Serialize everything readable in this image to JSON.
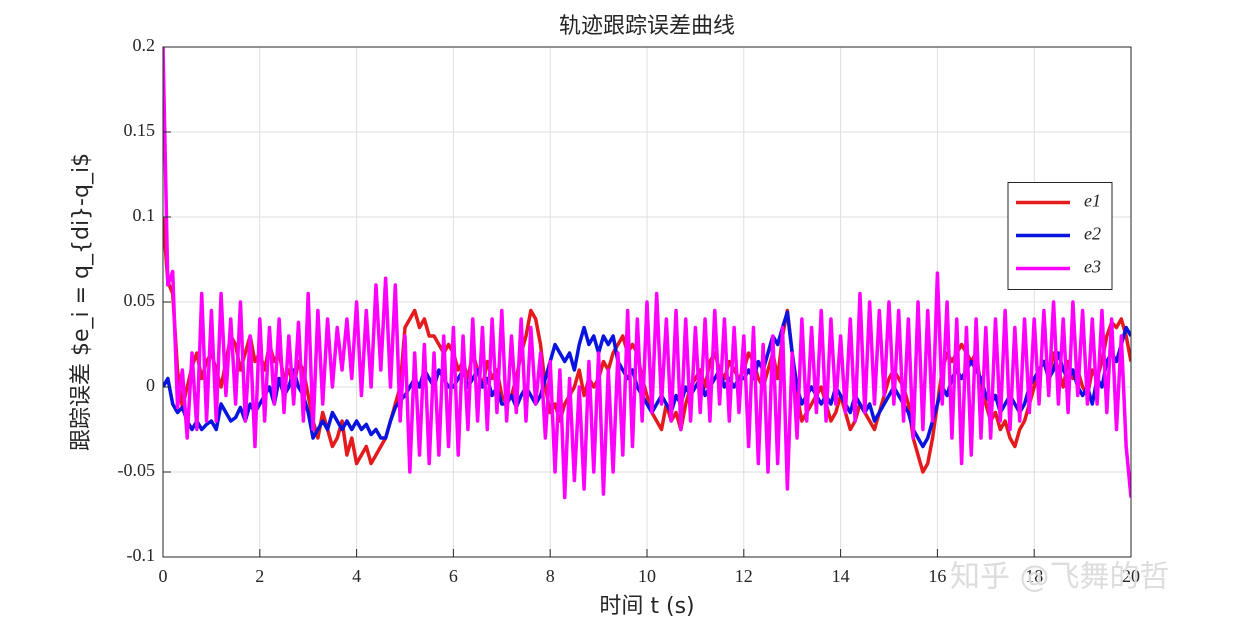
{
  "chart_data": {
    "type": "line",
    "title": "轨迹跟踪误差曲线",
    "x_label": "时间 t (s)",
    "y_label": "跟踪误差 $e_i = q_{di}-q_i$",
    "watermark": "知乎 @飞舞的哲",
    "xlim": [
      0,
      20
    ],
    "ylim": [
      -0.1,
      0.2
    ],
    "xticks": [
      0,
      2,
      4,
      6,
      8,
      10,
      12,
      14,
      16,
      18,
      20
    ],
    "yticks": [
      -0.1,
      -0.05,
      0,
      0.05,
      0.1,
      0.15,
      0.2
    ],
    "grid": true,
    "legend_location": "east",
    "x": [
      0,
      0.1,
      0.2,
      0.3,
      0.4,
      0.5,
      0.6,
      0.7,
      0.8,
      0.9,
      1,
      1.1,
      1.2,
      1.3,
      1.4,
      1.5,
      1.6,
      1.7,
      1.8,
      1.9,
      2,
      2.1,
      2.2,
      2.3,
      2.4,
      2.5,
      2.6,
      2.7,
      2.8,
      2.9,
      3,
      3.1,
      3.2,
      3.3,
      3.4,
      3.5,
      3.6,
      3.7,
      3.8,
      3.9,
      4,
      4.1,
      4.2,
      4.3,
      4.4,
      4.5,
      4.6,
      4.7,
      4.8,
      4.9,
      5,
      5.1,
      5.2,
      5.3,
      5.4,
      5.5,
      5.6,
      5.7,
      5.8,
      5.9,
      6,
      6.1,
      6.2,
      6.3,
      6.4,
      6.5,
      6.6,
      6.7,
      6.8,
      6.9,
      7,
      7.1,
      7.2,
      7.3,
      7.4,
      7.5,
      7.6,
      7.7,
      7.8,
      7.9,
      8,
      8.1,
      8.2,
      8.3,
      8.4,
      8.5,
      8.6,
      8.7,
      8.8,
      8.9,
      9,
      9.1,
      9.2,
      9.3,
      9.4,
      9.5,
      9.6,
      9.7,
      9.8,
      9.9,
      10,
      10.1,
      10.2,
      10.3,
      10.4,
      10.5,
      10.6,
      10.7,
      10.8,
      10.9,
      11,
      11.1,
      11.2,
      11.3,
      11.4,
      11.5,
      11.6,
      11.7,
      11.8,
      11.9,
      12,
      12.1,
      12.2,
      12.3,
      12.4,
      12.5,
      12.6,
      12.7,
      12.8,
      12.9,
      13,
      13.1,
      13.2,
      13.3,
      13.4,
      13.5,
      13.6,
      13.7,
      13.8,
      13.9,
      14,
      14.1,
      14.2,
      14.3,
      14.4,
      14.5,
      14.6,
      14.7,
      14.8,
      14.9,
      15,
      15.1,
      15.2,
      15.3,
      15.4,
      15.5,
      15.6,
      15.7,
      15.8,
      15.9,
      16,
      16.1,
      16.2,
      16.3,
      16.4,
      16.5,
      16.6,
      16.7,
      16.8,
      16.9,
      17,
      17.1,
      17.2,
      17.3,
      17.4,
      17.5,
      17.6,
      17.7,
      17.8,
      17.9,
      18,
      18.1,
      18.2,
      18.3,
      18.4,
      18.5,
      18.6,
      18.7,
      18.8,
      18.9,
      19,
      19.1,
      19.2,
      19.3,
      19.4,
      19.5,
      19.6,
      19.7,
      19.8,
      19.9,
      20
    ],
    "series": [
      {
        "name": "e1",
        "color": "#e41a1c",
        "values": [
          0.1,
          0.062,
          0.055,
          0.01,
          -0.012,
          0.0,
          0.012,
          0.02,
          0.005,
          0.015,
          0.02,
          0.01,
          0.0,
          0.015,
          0.03,
          0.025,
          0.01,
          0.02,
          0.03,
          0.015,
          0.02,
          0.01,
          0.025,
          0.015,
          0.02,
          0.005,
          0.01,
          0.0,
          0.015,
          0.01,
          -0.005,
          -0.02,
          -0.03,
          -0.015,
          -0.025,
          -0.035,
          -0.03,
          -0.02,
          -0.04,
          -0.03,
          -0.045,
          -0.04,
          -0.035,
          -0.045,
          -0.04,
          -0.035,
          -0.03,
          -0.02,
          -0.01,
          0.0,
          0.035,
          0.04,
          0.045,
          0.035,
          0.04,
          0.03,
          0.03,
          0.025,
          0.02,
          0.025,
          0.02,
          0.01,
          0.015,
          0.005,
          0.02,
          0.01,
          0.0,
          0.015,
          0.005,
          0.01,
          -0.005,
          -0.01,
          -0.005,
          0.005,
          0.02,
          0.03,
          0.045,
          0.04,
          0.025,
          0.0,
          -0.015,
          -0.01,
          -0.02,
          -0.01,
          -0.005,
          0.0,
          0.01,
          -0.005,
          0.005,
          0.0,
          0.005,
          0.015,
          0.01,
          0.02,
          0.025,
          0.03,
          0.02,
          0.025,
          0.02,
          0.005,
          -0.005,
          -0.015,
          -0.02,
          -0.025,
          -0.01,
          -0.02,
          -0.015,
          -0.025,
          -0.01,
          0.0,
          0.005,
          0.01,
          0.0,
          0.015,
          0.02,
          0.01,
          0.005,
          0.015,
          0.01,
          0.005,
          0.01,
          0.02,
          0.015,
          0.005,
          0.0,
          0.01,
          0.02,
          0.005,
          0.03,
          0.045,
          0.02,
          -0.005,
          -0.02,
          -0.015,
          -0.01,
          -0.005,
          0.0,
          -0.01,
          -0.02,
          -0.015,
          -0.005,
          -0.015,
          -0.025,
          -0.02,
          -0.01,
          -0.015,
          -0.02,
          -0.025,
          -0.015,
          -0.005,
          0.005,
          0.01,
          0.005,
          0.0,
          -0.01,
          -0.03,
          -0.04,
          -0.05,
          -0.045,
          -0.03,
          -0.01,
          0.01,
          0.02,
          0.015,
          0.02,
          0.025,
          0.02,
          0.015,
          0.02,
          0.0,
          -0.01,
          -0.02,
          -0.015,
          -0.025,
          -0.02,
          -0.03,
          -0.035,
          -0.025,
          -0.02,
          -0.01,
          0.0,
          0.01,
          0.015,
          0.005,
          0.02,
          0.01,
          0.0,
          0.015,
          0.005,
          0.01,
          0.0,
          -0.005,
          0.01,
          0.005,
          0.015,
          0.03,
          0.038,
          0.035,
          0.04,
          0.03,
          0.015
        ]
      },
      {
        "name": "e2",
        "color": "#0a14e0",
        "values": [
          0.0,
          0.005,
          -0.01,
          -0.015,
          -0.012,
          -0.02,
          -0.025,
          -0.02,
          -0.025,
          -0.022,
          -0.02,
          -0.025,
          -0.01,
          -0.015,
          -0.02,
          -0.018,
          -0.012,
          -0.02,
          -0.01,
          -0.015,
          -0.01,
          -0.005,
          0.0,
          -0.01,
          0.005,
          -0.005,
          0.0,
          0.01,
          0.0,
          -0.005,
          -0.015,
          -0.03,
          -0.025,
          -0.02,
          -0.025,
          -0.015,
          -0.02,
          -0.025,
          -0.02,
          -0.025,
          -0.02,
          -0.025,
          -0.022,
          -0.028,
          -0.025,
          -0.03,
          -0.03,
          -0.02,
          -0.012,
          -0.008,
          -0.005,
          0.0,
          0.005,
          0.0,
          0.01,
          0.005,
          0.0,
          0.01,
          0.005,
          0.0,
          0.0,
          0.005,
          0.01,
          0.0,
          0.005,
          0.01,
          0.0,
          0.005,
          -0.005,
          0.0,
          -0.01,
          -0.01,
          -0.005,
          -0.012,
          -0.005,
          0.0,
          -0.005,
          -0.01,
          -0.005,
          0.005,
          0.015,
          0.025,
          0.02,
          0.015,
          0.02,
          0.01,
          0.025,
          0.035,
          0.025,
          0.03,
          0.02,
          0.03,
          0.025,
          0.03,
          0.015,
          0.01,
          0.005,
          0.01,
          0.0,
          -0.005,
          -0.01,
          -0.015,
          -0.01,
          -0.005,
          -0.01,
          -0.015,
          -0.005,
          -0.01,
          0.0,
          -0.005,
          0.0,
          0.005,
          -0.005,
          0.0,
          0.005,
          0.01,
          0.0,
          0.005,
          0.0,
          0.005,
          0.005,
          0.01,
          0.005,
          0.015,
          0.01,
          0.02,
          0.03,
          0.025,
          0.035,
          0.044,
          0.02,
          0.0,
          -0.01,
          -0.005,
          0.0,
          -0.005,
          -0.01,
          -0.005,
          -0.01,
          0.0,
          -0.005,
          -0.01,
          -0.015,
          -0.005,
          -0.01,
          -0.015,
          -0.01,
          -0.02,
          -0.015,
          -0.01,
          -0.005,
          0.0,
          -0.005,
          -0.01,
          -0.015,
          -0.025,
          -0.03,
          -0.035,
          -0.03,
          -0.02,
          -0.01,
          0.0,
          -0.005,
          0.005,
          0.01,
          0.005,
          0.01,
          0.015,
          0.01,
          0.005,
          -0.005,
          -0.01,
          -0.005,
          -0.015,
          -0.01,
          -0.005,
          -0.01,
          -0.015,
          -0.01,
          0.0,
          0.005,
          0.01,
          0.015,
          0.005,
          0.01,
          0.02,
          0.01,
          0.005,
          0.01,
          0.0,
          -0.005,
          0.0,
          -0.01,
          0.005,
          0.0,
          0.015,
          0.02,
          0.015,
          0.025,
          0.035,
          0.03
        ]
      },
      {
        "name": "e3",
        "color": "#ff00ff",
        "values": [
          0.2,
          0.06,
          0.068,
          -0.012,
          0.01,
          -0.03,
          0.02,
          -0.025,
          0.055,
          -0.02,
          0.045,
          -0.02,
          0.055,
          -0.005,
          0.04,
          -0.01,
          0.05,
          -0.02,
          0.03,
          -0.035,
          0.04,
          -0.02,
          0.035,
          -0.01,
          0.04,
          -0.015,
          0.03,
          -0.01,
          0.038,
          -0.02,
          0.055,
          -0.025,
          0.045,
          -0.01,
          0.04,
          0.0,
          0.035,
          0.01,
          0.04,
          0.005,
          0.05,
          -0.005,
          0.045,
          0.0,
          0.06,
          0.01,
          0.064,
          0.0,
          0.06,
          -0.02,
          0.03,
          -0.05,
          0.02,
          -0.04,
          0.025,
          -0.045,
          0.02,
          -0.04,
          0.03,
          -0.035,
          0.035,
          -0.04,
          0.03,
          -0.025,
          0.04,
          -0.02,
          0.035,
          -0.025,
          0.04,
          -0.015,
          0.045,
          -0.02,
          0.03,
          -0.015,
          0.04,
          -0.02,
          0.035,
          -0.01,
          0.02,
          -0.03,
          0.015,
          -0.05,
          0.01,
          -0.065,
          0.005,
          -0.055,
          0.0,
          -0.06,
          0.015,
          -0.05,
          0.02,
          -0.063,
          0.01,
          -0.05,
          0.02,
          -0.04,
          0.045,
          -0.035,
          0.04,
          -0.02,
          0.05,
          -0.015,
          0.055,
          -0.01,
          0.04,
          -0.02,
          0.045,
          -0.025,
          0.04,
          -0.02,
          0.035,
          -0.015,
          0.04,
          -0.02,
          0.045,
          -0.01,
          0.04,
          -0.02,
          0.035,
          -0.015,
          0.03,
          -0.035,
          0.035,
          -0.045,
          0.025,
          -0.05,
          0.03,
          -0.045,
          0.035,
          -0.06,
          0.02,
          -0.03,
          0.04,
          -0.02,
          0.035,
          -0.015,
          0.045,
          -0.02,
          0.04,
          -0.01,
          0.03,
          -0.015,
          0.04,
          -0.02,
          0.055,
          -0.015,
          0.05,
          -0.01,
          0.045,
          -0.005,
          0.05,
          -0.01,
          0.045,
          -0.02,
          0.04,
          -0.03,
          0.05,
          -0.025,
          0.045,
          -0.02,
          0.067,
          -0.01,
          0.05,
          -0.03,
          0.04,
          -0.045,
          0.035,
          -0.04,
          0.04,
          -0.03,
          0.035,
          -0.03,
          0.04,
          -0.02,
          0.045,
          -0.025,
          0.035,
          -0.02,
          0.04,
          -0.015,
          0.04,
          -0.01,
          0.045,
          -0.005,
          0.05,
          -0.01,
          0.04,
          -0.015,
          0.05,
          -0.005,
          0.045,
          -0.01,
          0.04,
          -0.01,
          0.045,
          -0.015,
          0.04,
          -0.025,
          0.03,
          -0.035,
          -0.065
        ]
      }
    ]
  }
}
